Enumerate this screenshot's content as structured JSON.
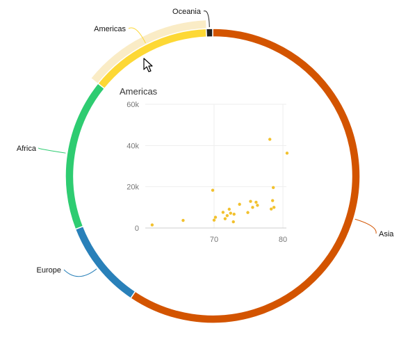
{
  "chart_data": [
    {
      "type": "donut",
      "series": [
        {
          "name": "Asia",
          "value": 59.4,
          "color": "#d35400"
        },
        {
          "name": "Europe",
          "value": 9.7,
          "color": "#2980b9"
        },
        {
          "name": "Africa",
          "value": 16.7,
          "color": "#2ecc71"
        },
        {
          "name": "Americas",
          "value": 13.5,
          "color": "#fdd835"
        },
        {
          "name": "Oceania",
          "value": 0.7,
          "color": "#222222"
        }
      ],
      "highlighted": "Americas",
      "hover_color": "#faecc6",
      "legend": "labels outside ring with leader lines"
    },
    {
      "type": "scatter",
      "title": "Americas",
      "xlabel": "",
      "ylabel": "",
      "xlim": [
        60,
        80.5
      ],
      "ylim": [
        0,
        60000
      ],
      "xticks": [
        {
          "value": 70,
          "label": "70"
        },
        {
          "value": 80,
          "label": "80"
        }
      ],
      "yticks": [
        {
          "value": 0,
          "label": "0"
        },
        {
          "value": 20000,
          "label": "20k"
        },
        {
          "value": 40000,
          "label": "40k"
        },
        {
          "value": 60000,
          "label": "60k"
        }
      ],
      "grid": true,
      "point_color": "#f2c12e",
      "points": [
        {
          "x": 61.0,
          "y": 1500
        },
        {
          "x": 65.5,
          "y": 3700
        },
        {
          "x": 69.8,
          "y": 18300
        },
        {
          "x": 70.0,
          "y": 3800
        },
        {
          "x": 70.2,
          "y": 5200
        },
        {
          "x": 71.3,
          "y": 7600
        },
        {
          "x": 71.6,
          "y": 4500
        },
        {
          "x": 71.9,
          "y": 6000
        },
        {
          "x": 72.2,
          "y": 9100
        },
        {
          "x": 72.4,
          "y": 7200
        },
        {
          "x": 72.8,
          "y": 3000
        },
        {
          "x": 72.9,
          "y": 6700
        },
        {
          "x": 73.7,
          "y": 11500
        },
        {
          "x": 74.9,
          "y": 7500
        },
        {
          "x": 75.3,
          "y": 12900
        },
        {
          "x": 75.6,
          "y": 10000
        },
        {
          "x": 76.1,
          "y": 12500
        },
        {
          "x": 76.3,
          "y": 11000
        },
        {
          "x": 78.1,
          "y": 43000
        },
        {
          "x": 78.3,
          "y": 9200
        },
        {
          "x": 78.5,
          "y": 13300
        },
        {
          "x": 78.6,
          "y": 19600
        },
        {
          "x": 78.7,
          "y": 10000
        },
        {
          "x": 80.6,
          "y": 36300
        }
      ]
    }
  ]
}
